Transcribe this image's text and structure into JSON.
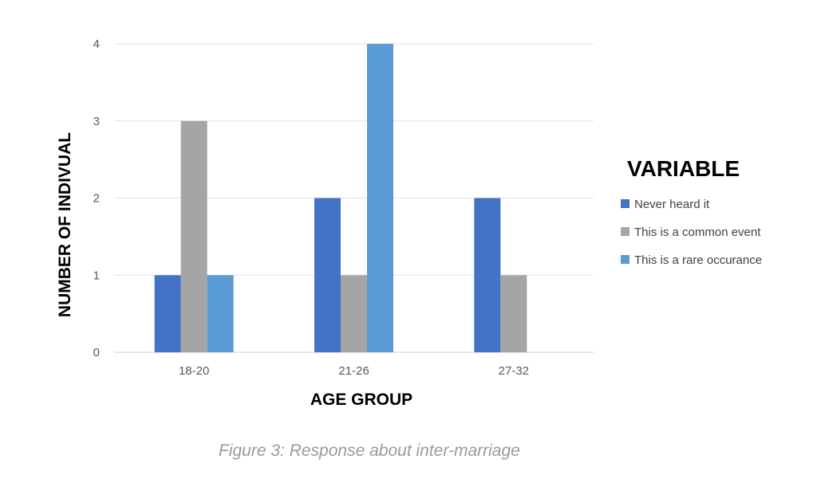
{
  "chart_data": {
    "type": "bar",
    "categories": [
      "18-20",
      "21-26",
      "27-32"
    ],
    "series": [
      {
        "name": "Never heard it",
        "values": [
          1,
          2,
          2
        ],
        "color": "#4472c4"
      },
      {
        "name": "This is a common event",
        "values": [
          3,
          1,
          1
        ],
        "color": "#a5a5a5"
      },
      {
        "name": "This is a rare occurance",
        "values": [
          1,
          4,
          0
        ],
        "color": "#5b9bd5"
      }
    ],
    "xlabel": "AGE GROUP",
    "ylabel": "NUMBER OF INDIVUAL",
    "ylim": [
      0,
      4
    ],
    "yticks": [
      0,
      1,
      2,
      3,
      4
    ],
    "grid": true,
    "legend_title": "VARIABLE",
    "legend_position": "right",
    "caption": "Figure 3: Response about inter-marriage"
  }
}
